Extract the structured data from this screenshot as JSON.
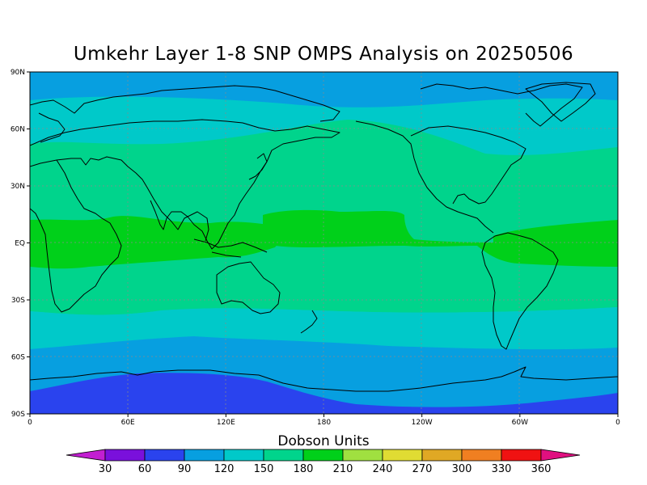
{
  "title": "Umkehr Layer 1-8 SNP OMPS Analysis on 20250506",
  "colorbar": {
    "label": "Dobson Units",
    "tick_labels": [
      "30",
      "60",
      "90",
      "120",
      "150",
      "180",
      "210",
      "240",
      "270",
      "300",
      "330",
      "360"
    ],
    "colors": [
      "#c21fd1",
      "#7a10dc",
      "#2a43ee",
      "#079fe0",
      "#00c9c9",
      "#00d48c",
      "#00d01a",
      "#a0e040",
      "#e0dc33",
      "#e0a824",
      "#f07f21",
      "#f01212",
      "#e01080"
    ]
  },
  "axes": {
    "lat_labels": [
      "90N",
      "60N",
      "30N",
      "EQ",
      "30S",
      "60S",
      "90S"
    ],
    "lon_labels": [
      "0",
      "60E",
      "120E",
      "180",
      "120W",
      "60W",
      "0"
    ]
  },
  "chart_data": {
    "type": "heatmap",
    "title": "Umkehr Layer 1-8 SNP OMPS Analysis on 20250506",
    "variable_label": "Dobson Units",
    "x_range": [
      0,
      360
    ],
    "y_range": [
      -90,
      90
    ],
    "levels": [
      30,
      60,
      90,
      120,
      150,
      180,
      210,
      240,
      270,
      300,
      330,
      360
    ],
    "zonal_bands": [
      {
        "lat_from": 90,
        "lat_to": 78,
        "value_range": [
          90,
          120
        ]
      },
      {
        "lat_from": 78,
        "lat_to": 62,
        "value_range": [
          120,
          150
        ]
      },
      {
        "lat_from": 62,
        "lat_to": 12,
        "value_range": [
          150,
          180
        ]
      },
      {
        "lat_from": 12,
        "lat_to": -12,
        "value_range": [
          180,
          210
        ]
      },
      {
        "lat_from": -12,
        "lat_to": -36,
        "value_range": [
          150,
          180
        ]
      },
      {
        "lat_from": -36,
        "lat_to": -55,
        "value_range": [
          120,
          150
        ]
      },
      {
        "lat_from": -55,
        "lat_to": -75,
        "value_range": [
          90,
          120
        ]
      },
      {
        "lat_from": -75,
        "lat_to": -90,
        "value_range": [
          60,
          90
        ]
      }
    ]
  }
}
